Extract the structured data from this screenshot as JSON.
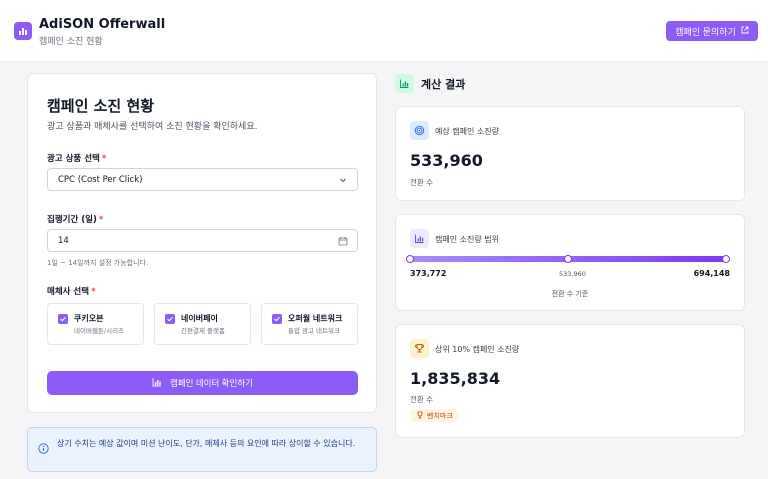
{
  "header": {
    "title": "AdiSON Offerwall",
    "subtitle": "캠페인 소진 현황",
    "inquiry_button": "캠페인 문의하기",
    "logo_icon": "bar-chart-icon",
    "external_icon": "external-link-icon"
  },
  "form": {
    "title": "캠페인 소진 현황",
    "description": "광고 상품과 매체사를 선택하여 소진 현황을 확인하세요.",
    "product_label": "광고 상품 선택",
    "product_value": "CPC (Cost Per Click)",
    "period_label": "집행기간 (일)",
    "period_value": "14",
    "period_hint": "1일 ~ 14일까지 설정 가능합니다.",
    "media_label": "매체사 선택",
    "required_mark": "*",
    "media": [
      {
        "name": "쿠키오븐",
        "desc": "네이버웹툰/시리즈",
        "checked": true
      },
      {
        "name": "네이버페이",
        "desc": "간편결제 플랫폼",
        "checked": true
      },
      {
        "name": "오퍼월 네트워크",
        "desc": "통합 광고 네트워크",
        "checked": true
      }
    ],
    "confirm_button": "캠페인 데이터 확인하기"
  },
  "notice": {
    "text": "상기 수치는 예상 값이며 미션 난이도, 단가, 매체사 등의 요인에 따라 상이할 수 있습니다."
  },
  "results": {
    "title": "계산 결과",
    "expected": {
      "label": "예상 캠페인 소진량",
      "value": "533,960",
      "unit": "전환 수"
    },
    "range": {
      "label": "캠페인 소진량 범위",
      "min": "373,772",
      "mid": "533,960",
      "max": "694,148",
      "basis": "전환 수 기준",
      "min_value": 373772,
      "mid_value": 533960,
      "max_value": 694148
    },
    "top10": {
      "label": "상위 10% 캠페인 소진량",
      "value": "1,835,834",
      "unit": "전환 수",
      "badge": "벤치마크"
    }
  },
  "colors": {
    "accent": "#8b5cf6",
    "notice_bg": "#eaf2fd",
    "result_icon_bg": "#d1fae5"
  }
}
